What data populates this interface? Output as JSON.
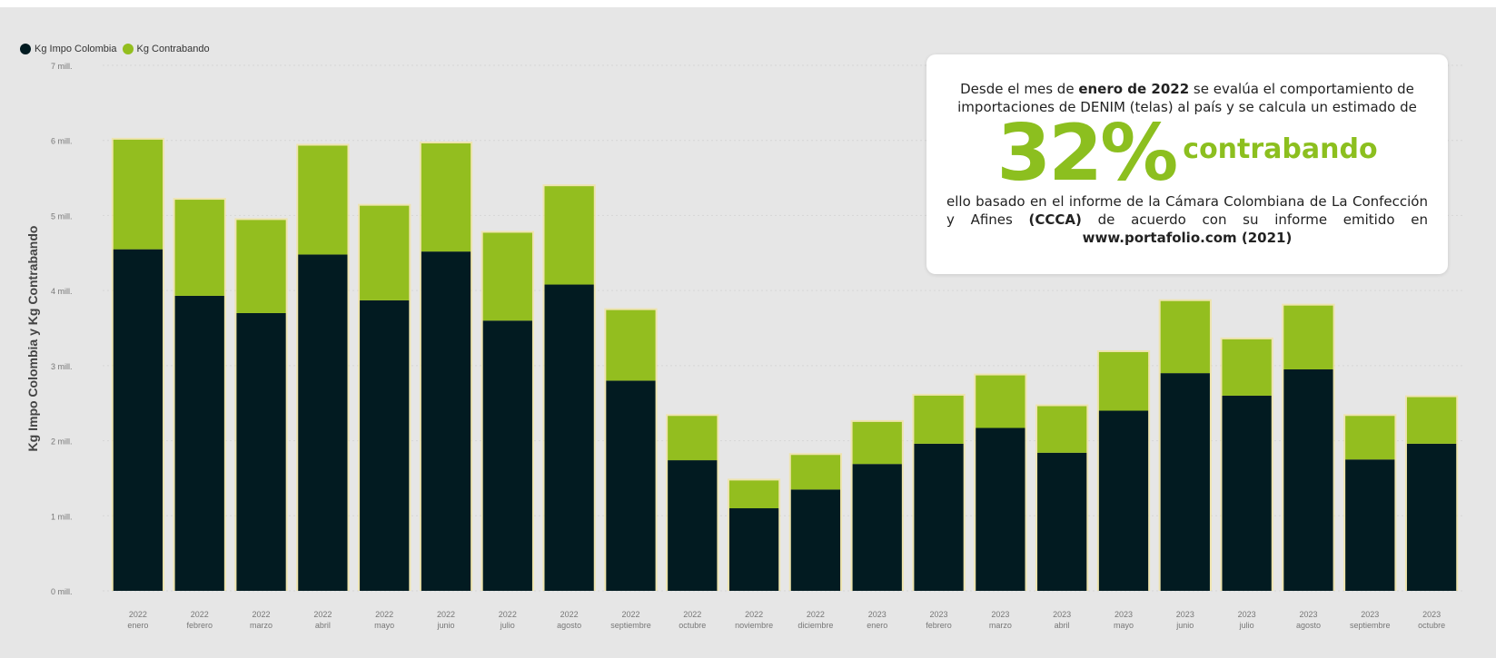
{
  "legend": {
    "impo_label": "Kg Impo Colombia",
    "contra_label": "Kg Contrabando"
  },
  "colors": {
    "impo": "#021b21",
    "contra": "#93be1f",
    "glow": "#f3e28a",
    "background": "#e6e6e6"
  },
  "callout": {
    "line1_pre": "Desde el mes de ",
    "line1_bold": "enero de 2022",
    "line1_post": " se evalúa el comportamiento de importaciones de DENIM (telas) al país y se calcula un estimado de",
    "percent": "32%",
    "percent_word": "contrabando",
    "line2_pre": "ello basado en el informe de la Cámara Colombiana de La Confección y Afines ",
    "line2_bold": "(CCCA)",
    "line2_mid": " de acuerdo con su informe emitido en ",
    "line2_link": "www.portafolio.com (2021)"
  },
  "chart_data": {
    "type": "bar",
    "stacked": true,
    "ylabel": "Kg Impo Colombia y Kg Contrabando",
    "yticks": [
      "0 mill.",
      "1 mill.",
      "2 mill.",
      "3 mill.",
      "4 mill.",
      "5 mill.",
      "6 mill.",
      "7 mill."
    ],
    "ylim": [
      0,
      7
    ],
    "categories": [
      "2022 enero",
      "2022 febrero",
      "2022 marzo",
      "2022 abril",
      "2022 mayo",
      "2022 junio",
      "2022 julio",
      "2022 agosto",
      "2022 septiembre",
      "2022 octubre",
      "2022 noviembre",
      "2022 diciembre",
      "2023 enero",
      "2023 febrero",
      "2023 marzo",
      "2023 abril",
      "2023 mayo",
      "2023 junio",
      "2023 julio",
      "2023 agosto",
      "2023 septiembre",
      "2023 octubre"
    ],
    "series": [
      {
        "name": "Kg Impo Colombia",
        "values": [
          4.55,
          3.93,
          3.7,
          4.48,
          3.87,
          4.52,
          3.6,
          4.08,
          2.8,
          1.74,
          1.1,
          1.35,
          1.69,
          1.96,
          2.17,
          1.84,
          2.4,
          2.9,
          2.6,
          2.95,
          1.75,
          1.96
        ]
      },
      {
        "name": "Kg Contrabando",
        "values": [
          1.46,
          1.28,
          1.24,
          1.45,
          1.26,
          1.44,
          1.17,
          1.31,
          0.94,
          0.59,
          0.37,
          0.46,
          0.56,
          0.64,
          0.7,
          0.62,
          0.78,
          0.96,
          0.75,
          0.85,
          0.58,
          0.62
        ]
      }
    ]
  }
}
